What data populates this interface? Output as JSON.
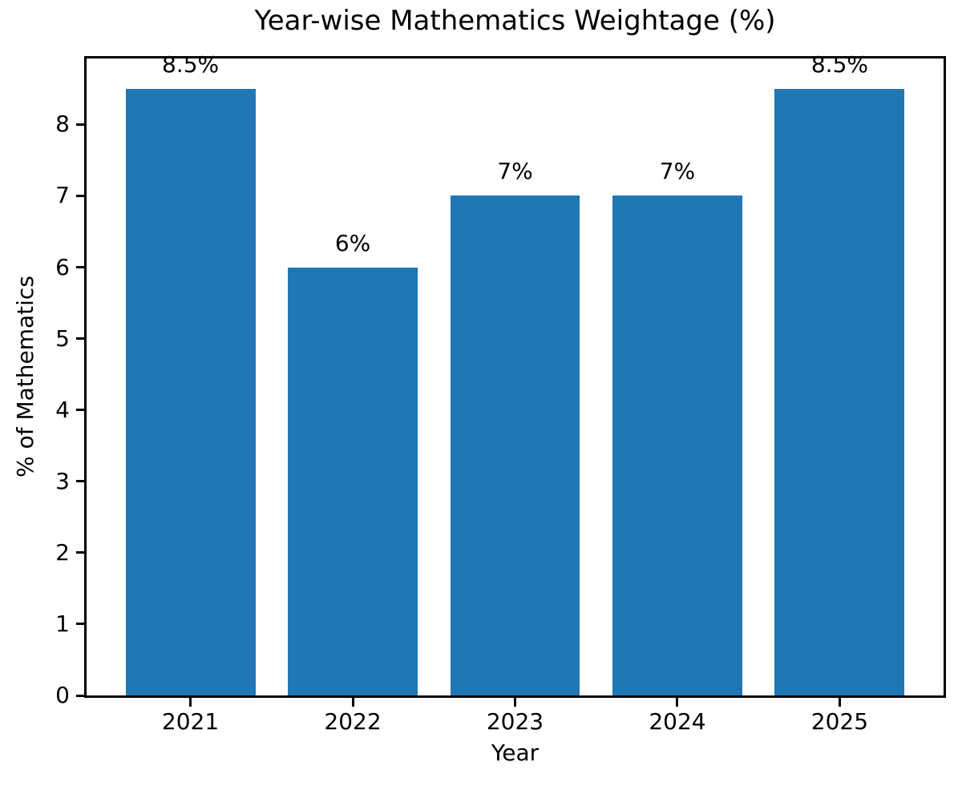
{
  "chart_data": {
    "type": "bar",
    "title": "Year-wise Mathematics Weightage (%)",
    "xlabel": "Year",
    "ylabel": "% of Mathematics",
    "categories": [
      "2021",
      "2022",
      "2023",
      "2024",
      "2025"
    ],
    "values": [
      8.5,
      6,
      7,
      7,
      8.5
    ],
    "bar_labels": [
      "8.5%",
      "6%",
      "7%",
      "7%",
      "8.5%"
    ],
    "yticks": [
      0,
      1,
      2,
      3,
      4,
      5,
      6,
      7,
      8
    ],
    "ylim": [
      0,
      8.925
    ],
    "bar_color": "#1f77b4",
    "spine_color": "#000000",
    "text_color": "#000000",
    "grid": false,
    "legend": "none"
  }
}
